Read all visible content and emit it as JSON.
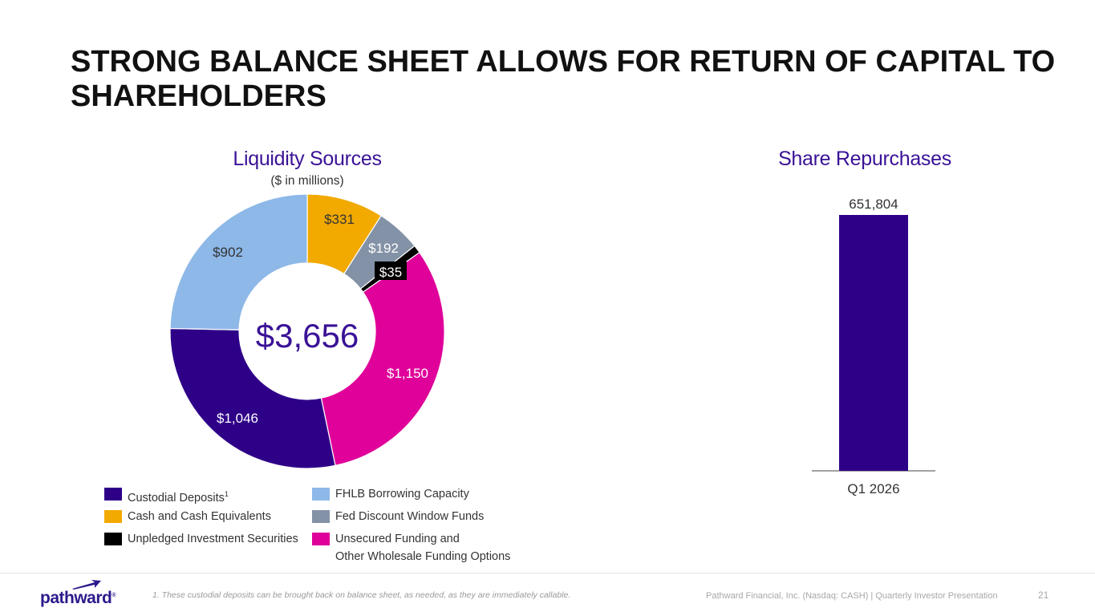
{
  "title": "STRONG BALANCE SHEET ALLOWS FOR RETURN OF CAPITAL TO SHAREHOLDERS",
  "liquidity": {
    "title": "Liquidity Sources",
    "subtitle": "($ in millions)",
    "center_total": "$3,656"
  },
  "repurchases": {
    "title": "Share Repurchases"
  },
  "colors": {
    "custodial": "#2e0088",
    "cash": "#f2a900",
    "unpledged": "#000000",
    "fhlb": "#8db8e8",
    "fed": "#8392a6",
    "unsecured": "#e0009a",
    "accent": "#3a1296"
  },
  "legend": [
    {
      "key": "custodial",
      "label": "Custodial Deposits",
      "sup": "1"
    },
    {
      "key": "fhlb",
      "label": "FHLB Borrowing Capacity",
      "sup": ""
    },
    {
      "key": "cash",
      "label": "Cash and Cash Equivalents",
      "sup": ""
    },
    {
      "key": "fed",
      "label": "Fed Discount Window Funds",
      "sup": ""
    },
    {
      "key": "unpledged",
      "label": "Unpledged Investment Securities",
      "sup": ""
    },
    {
      "key": "unsecured",
      "label": "Unsecured Funding and",
      "label2": "Other Wholesale Funding Options",
      "sup": ""
    }
  ],
  "chart_data": [
    {
      "type": "pie",
      "title": "Liquidity Sources",
      "subtitle": "($ in millions)",
      "center_label": "$3,656",
      "slices": [
        {
          "name": "Cash and Cash Equivalents",
          "key": "cash",
          "value": 331,
          "label": "$331"
        },
        {
          "name": "Fed Discount Window Funds",
          "key": "fed",
          "value": 192,
          "label": "$192"
        },
        {
          "name": "Unpledged Investment Securities",
          "key": "unpledged",
          "value": 35,
          "label": "$35"
        },
        {
          "name": "Unsecured Funding and Other Wholesale Funding Options",
          "key": "unsecured",
          "value": 1150,
          "label": "$1,150"
        },
        {
          "name": "Custodial Deposits",
          "key": "custodial",
          "value": 1046,
          "label": "$1,046"
        },
        {
          "name": "FHLB Borrowing Capacity",
          "key": "fhlb",
          "value": 902,
          "label": "$902"
        }
      ]
    },
    {
      "type": "bar",
      "title": "Share Repurchases",
      "categories": [
        "Q1 2026"
      ],
      "values": [
        651804
      ],
      "labels": [
        "651,804"
      ],
      "ylim": [
        0,
        651804
      ]
    }
  ],
  "footer": {
    "footnote": "1. These custodial deposits can be brought back on balance sheet, as needed, as they are immediately callable.",
    "source": "Pathward Financial, Inc. (Nasdaq: CASH) | Quarterly Investor Presentation",
    "page": "21",
    "logo_text": "pathward",
    "logo_mark": "®"
  }
}
